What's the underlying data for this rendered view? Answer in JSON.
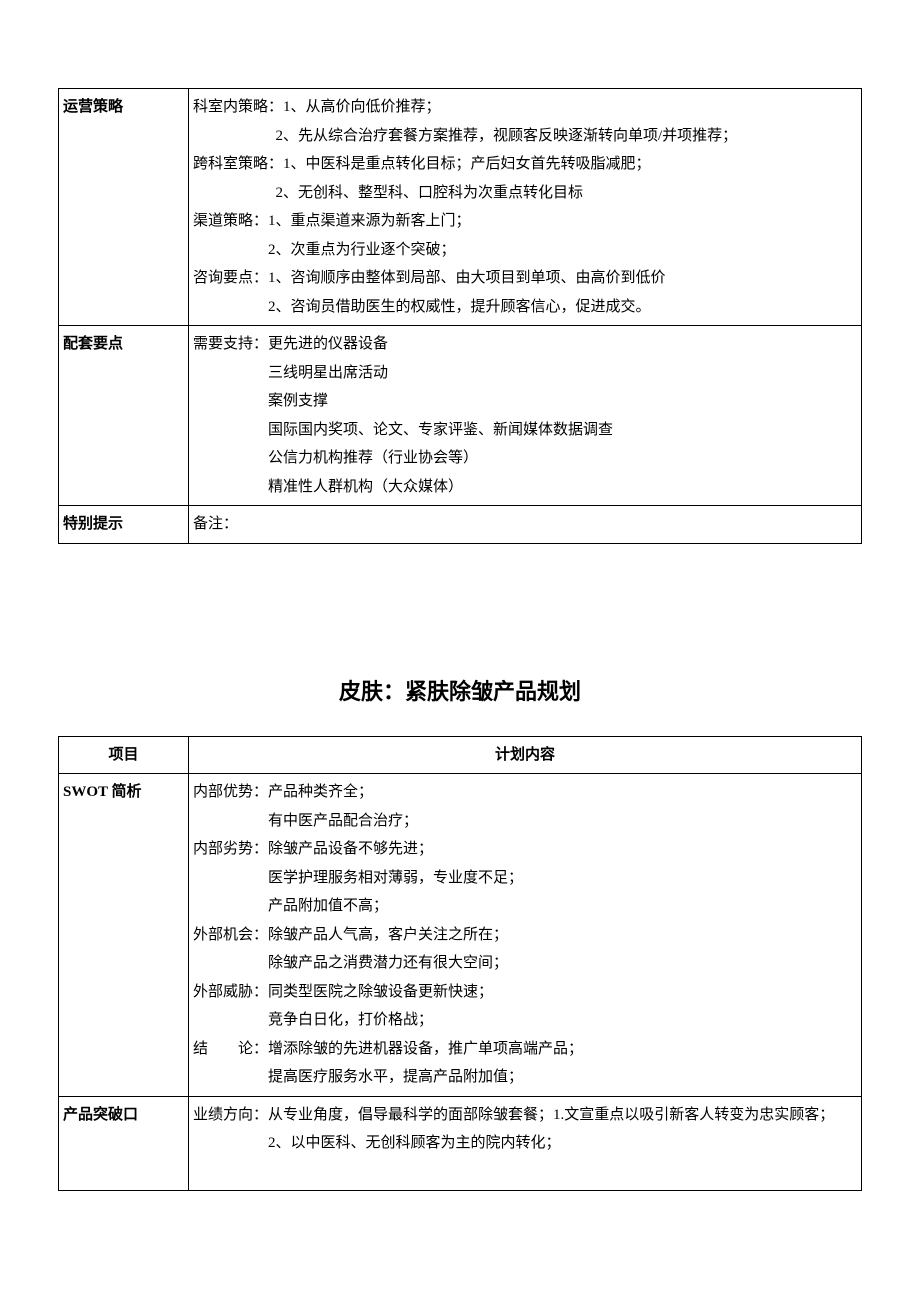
{
  "table1": {
    "rows": [
      {
        "label": "运营策略",
        "lines": [
          {
            "text": "科室内策略：1、从高价向低价推荐；",
            "indent": 0
          },
          {
            "text": "2、先从综合治疗套餐方案推荐，视顾客反映逐渐转向单项/并项推荐；",
            "indent": 1
          },
          {
            "text": "跨科室策略：1、中医科是重点转化目标；产后妇女首先转吸脂减肥；",
            "indent": 0
          },
          {
            "text": "2、无创科、整型科、口腔科为次重点转化目标",
            "indent": 1
          },
          {
            "text": "渠道策略：1、重点渠道来源为新客上门；",
            "indent": 0
          },
          {
            "text": "2、次重点为行业逐个突破；",
            "indent": 2
          },
          {
            "text": "咨询要点：1、咨询顺序由整体到局部、由大项目到单项、由高价到低价",
            "indent": 0
          },
          {
            "text": "2、咨询员借助医生的权威性，提升顾客信心，促进成交。",
            "indent": 2
          }
        ]
      },
      {
        "label": "配套要点",
        "lines": [
          {
            "text": "需要支持：更先进的仪器设备",
            "indent": 0
          },
          {
            "text": "三线明星出席活动",
            "indent": 2
          },
          {
            "text": "案例支撑",
            "indent": 2
          },
          {
            "text": "国际国内奖项、论文、专家评鉴、新闻媒体数据调查",
            "indent": 2
          },
          {
            "text": "公信力机构推荐（行业协会等）",
            "indent": 2
          },
          {
            "text": "精准性人群机构（大众媒体）",
            "indent": 2
          }
        ]
      },
      {
        "label": "特别提示",
        "lines": [
          {
            "text": "备注：",
            "indent": 0
          }
        ]
      }
    ]
  },
  "sectionTitle": "皮肤：紧肤除皱产品规划",
  "table2": {
    "headers": [
      "项目",
      "计划内容"
    ],
    "rows": [
      {
        "label": "SWOT 简析",
        "lines": [
          {
            "text": "内部优势：产品种类齐全；",
            "indent": 0
          },
          {
            "text": "有中医产品配合治疗；",
            "indent": 2
          },
          {
            "text": "内部劣势：除皱产品设备不够先进；",
            "indent": 0
          },
          {
            "text": "医学护理服务相对薄弱，专业度不足；",
            "indent": 2
          },
          {
            "text": "产品附加值不高；",
            "indent": 2
          },
          {
            "text": "外部机会：除皱产品人气高，客户关注之所在；",
            "indent": 0
          },
          {
            "text": "除皱产品之消费潜力还有很大空间；",
            "indent": 2
          },
          {
            "text": "外部威胁：同类型医院之除皱设备更新快速；",
            "indent": 0
          },
          {
            "text": "竞争白日化，打价格战；",
            "indent": 2
          },
          {
            "text": "结　　论：增添除皱的先进机器设备，推广单项高端产品；",
            "indent": 0
          },
          {
            "text": "提高医疗服务水平，提高产品附加值；",
            "indent": 2
          }
        ]
      },
      {
        "label": "产品突破口",
        "lines": [
          {
            "text": "业绩方向：从专业角度，倡导最科学的面部除皱套餐；1.文宣重点以吸引新客人转变为忠实顾客；",
            "indent": 0
          },
          {
            "text": "2、以中医科、无创科顾客为主的院内转化；",
            "indent": 2
          },
          {
            "text": "",
            "indent": 0
          }
        ]
      }
    ]
  }
}
